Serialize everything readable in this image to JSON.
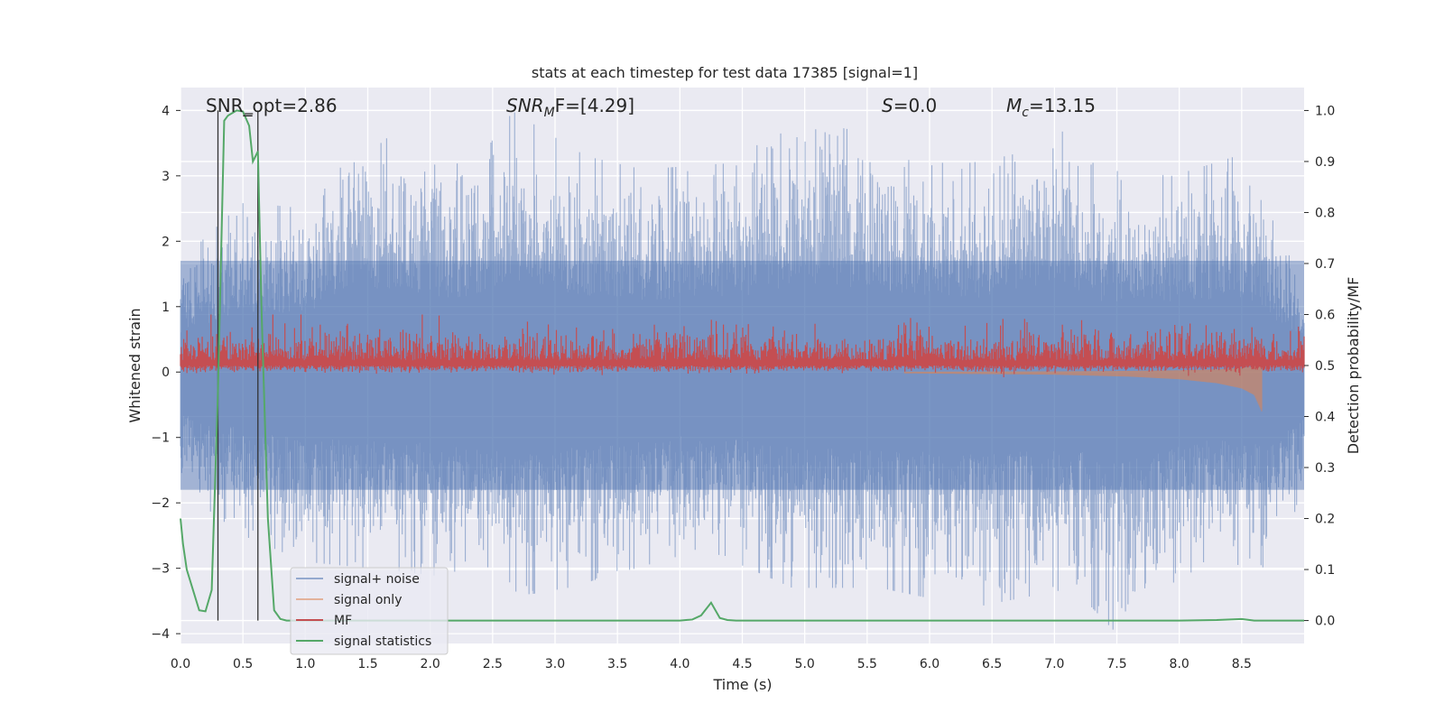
{
  "chart_data": {
    "type": "line",
    "title": "stats at each timestep for test data 17385 [signal=1]",
    "xlabel": "Time (s)",
    "ylabel_left": "Whitened strain",
    "ylabel_right": "Detection probability/MF",
    "xlim": [
      0.0,
      9.0
    ],
    "ylim_left": [
      -4.15,
      4.35
    ],
    "ylim_right": [
      -0.045,
      1.045
    ],
    "x_ticks": [
      0.0,
      0.5,
      1.0,
      1.5,
      2.0,
      2.5,
      3.0,
      3.5,
      4.0,
      4.5,
      5.0,
      5.5,
      6.0,
      6.5,
      7.0,
      7.5,
      8.0,
      8.5
    ],
    "y_ticks_left": [
      4,
      3,
      2,
      1,
      0,
      -1,
      -2,
      -3,
      -4
    ],
    "y_ticks_right": [
      1.0,
      0.9,
      0.8,
      0.7,
      0.6,
      0.5,
      0.4,
      0.3,
      0.2,
      0.1,
      0.0
    ],
    "grid": true,
    "legend_position": "lower-left",
    "annotations": {
      "snr_opt": "SNR_opt=2.86",
      "snr_mf": "SNR",
      "snr_mf_sub": "M",
      "snr_mf_rest": "F=[4.29]",
      "s": "S",
      "s_rest": "=0.0",
      "mc": "M",
      "mc_sub": "c",
      "mc_rest": "=13.15"
    },
    "vlines": [
      0.3,
      0.62
    ],
    "hline_segment": {
      "x": [
        0.5,
        0.58
      ],
      "y": 3.95
    },
    "series": [
      {
        "name": "signal+ noise",
        "axis": "left",
        "color": "#4c72b0",
        "description_envelope_upper": [
          [
            0.0,
            1.7
          ],
          [
            0.5,
            2.6
          ],
          [
            1.0,
            2.5
          ],
          [
            1.35,
            3.8
          ],
          [
            1.75,
            3.5
          ],
          [
            2.35,
            3.1
          ],
          [
            2.65,
            4.0
          ],
          [
            3.25,
            3.3
          ],
          [
            3.7,
            3.1
          ],
          [
            4.45,
            3.2
          ],
          [
            4.7,
            3.6
          ],
          [
            5.15,
            3.8
          ],
          [
            5.6,
            3.6
          ],
          [
            6.05,
            3.2
          ],
          [
            6.35,
            3.2
          ],
          [
            6.85,
            3.6
          ],
          [
            6.98,
            4.0
          ],
          [
            7.35,
            3.1
          ],
          [
            7.95,
            3.0
          ],
          [
            8.45,
            3.3
          ],
          [
            9.0,
            1.5
          ]
        ],
        "description_envelope_lower": [
          [
            0.0,
            -1.8
          ],
          [
            0.5,
            -2.5
          ],
          [
            1.0,
            -2.9
          ],
          [
            2.0,
            -3.1
          ],
          [
            2.8,
            -3.4
          ],
          [
            3.1,
            -3.3
          ],
          [
            4.2,
            -2.7
          ],
          [
            4.9,
            -3.3
          ],
          [
            5.6,
            -3.3
          ],
          [
            6.35,
            -3.6
          ],
          [
            7.15,
            -3.3
          ],
          [
            7.5,
            -4.0
          ],
          [
            8.2,
            -2.9
          ],
          [
            8.75,
            -3.0
          ],
          [
            9.0,
            -1.9
          ]
        ]
      },
      {
        "name": "signal only",
        "axis": "left",
        "color": "#dd8452",
        "x": [
          5.8,
          7.0,
          7.6,
          8.0,
          8.3,
          8.5,
          8.6,
          8.66,
          8.68
        ],
        "y": [
          -0.02,
          -0.04,
          -0.07,
          -0.11,
          -0.17,
          -0.25,
          -0.35,
          -0.6,
          0.0
        ]
      },
      {
        "name": "MF",
        "axis": "right",
        "color": "#c44e52",
        "base": 0.5,
        "peak": 0.6
      },
      {
        "name": "signal statistics",
        "axis": "right",
        "color": "#55a868",
        "x": [
          0.0,
          0.02,
          0.05,
          0.1,
          0.15,
          0.2,
          0.25,
          0.3,
          0.35,
          0.38,
          0.45,
          0.5,
          0.55,
          0.58,
          0.62,
          0.65,
          0.7,
          0.75,
          0.8,
          0.85,
          0.9,
          1.0,
          1.5,
          2.0,
          3.0,
          4.0,
          4.1,
          4.17,
          4.25,
          4.32,
          4.38,
          4.45,
          5.0,
          6.0,
          7.0,
          8.0,
          8.3,
          8.5,
          8.6,
          9.0
        ],
        "y": [
          0.2,
          0.15,
          0.1,
          0.06,
          0.02,
          0.018,
          0.06,
          0.45,
          0.98,
          0.99,
          1.0,
          0.998,
          0.97,
          0.9,
          0.92,
          0.6,
          0.2,
          0.02,
          0.003,
          0.0,
          0.0,
          0.0,
          0.0,
          0.0,
          0.0,
          0.0,
          0.002,
          0.01,
          0.035,
          0.005,
          0.001,
          0.0,
          0.0,
          0.0,
          0.0,
          0.0,
          0.001,
          0.003,
          0.0,
          0.0
        ]
      }
    ],
    "legend": [
      "signal+ noise",
      "signal only",
      "MF",
      "signal statistics"
    ]
  }
}
